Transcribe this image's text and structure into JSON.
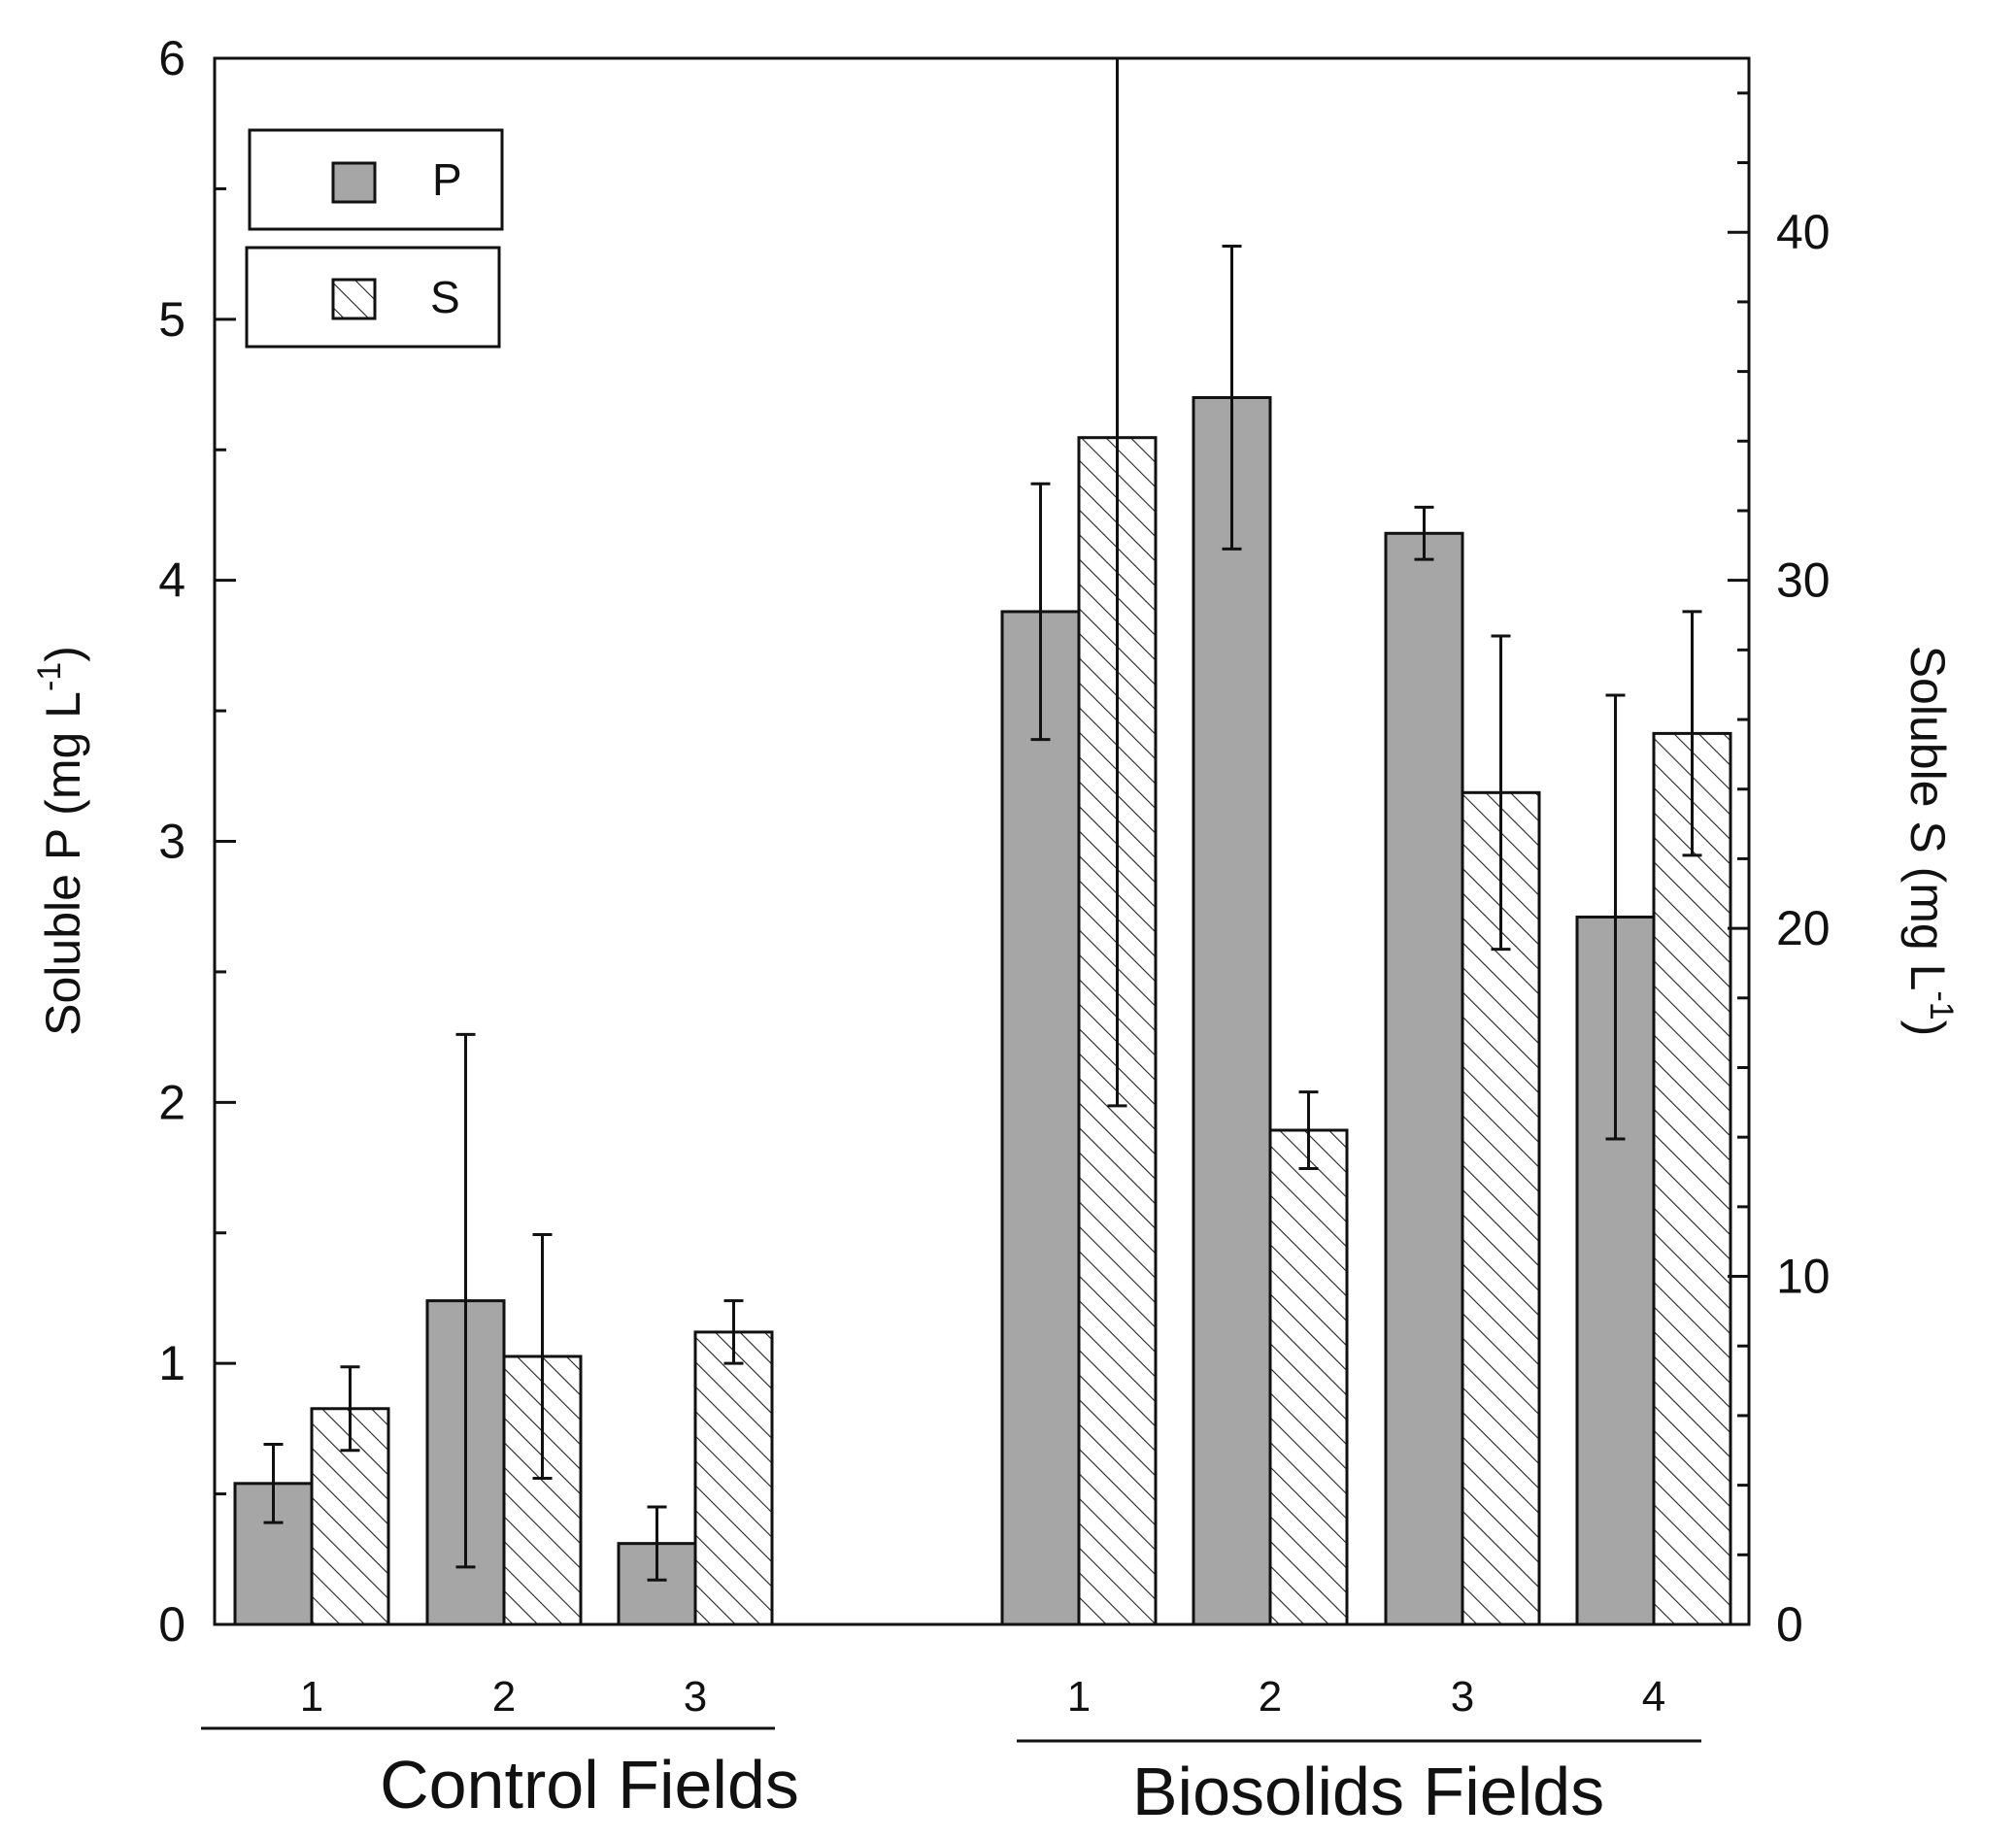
{
  "chart_data": {
    "type": "bar",
    "title": "",
    "ylabel_left": {
      "text": "Soluble P (mg L",
      "sup": "-1",
      "close": ")"
    },
    "ylabel_right": {
      "text": "Soluble S (mg L",
      "sup": "-1",
      "close": ")"
    },
    "ylim_left": [
      0,
      6
    ],
    "ylim_right": [
      0,
      45
    ],
    "left_ticks": [
      0,
      1,
      2,
      3,
      4,
      5,
      6
    ],
    "right_ticks": [
      0,
      10,
      20,
      30,
      40
    ],
    "legend_position": "top-left",
    "legend": [
      {
        "key": "P",
        "label": "P",
        "axis": "left",
        "fill": "#a6a6a6",
        "pattern": "solid"
      },
      {
        "key": "S",
        "label": "S",
        "axis": "right",
        "fill": "#ffffff",
        "pattern": "diagonal-hatch"
      }
    ],
    "groups": [
      {
        "title": "Control Fields",
        "categories": [
          {
            "label": "1",
            "P": 0.54,
            "P_err": 0.15,
            "S": 6.2,
            "S_err": 1.2
          },
          {
            "label": "2",
            "P": 1.24,
            "P_err": 1.02,
            "S": 7.7,
            "S_err": 3.5
          },
          {
            "label": "3",
            "P": 0.31,
            "P_err": 0.14,
            "S": 8.4,
            "S_err": 0.9
          }
        ]
      },
      {
        "title": "Biosolids Fields",
        "categories": [
          {
            "label": "1",
            "P": 3.88,
            "P_err": 0.49,
            "S": 34.1,
            "S_err": 19.2
          },
          {
            "label": "2",
            "P": 4.7,
            "P_err": 0.58,
            "S": 14.2,
            "S_err": 1.1
          },
          {
            "label": "3",
            "P": 4.18,
            "P_err": 0.1,
            "S": 23.9,
            "S_err": 4.5
          },
          {
            "label": "4",
            "P": 2.71,
            "P_err": 0.85,
            "S": 25.6,
            "S_err": 3.5
          }
        ]
      }
    ],
    "colors": {
      "axis": "#111111",
      "P_fill": "#a6a6a6",
      "S_fill": "#ffffff",
      "hatch": "#222222"
    }
  }
}
